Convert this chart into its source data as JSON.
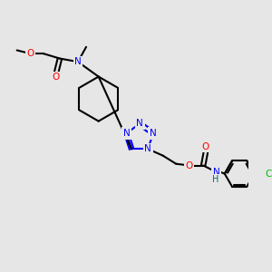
{
  "background_color": "#e6e6e6",
  "atom_colors": {
    "N": "#0000ff",
    "O": "#ff0000",
    "Cl": "#00bb00",
    "C": "#000000",
    "H": "#007070"
  },
  "bond_color": "#000000",
  "bond_width": 1.5,
  "figure_size": [
    3.0,
    3.0
  ],
  "dpi": 100,
  "font_size": 7.5
}
